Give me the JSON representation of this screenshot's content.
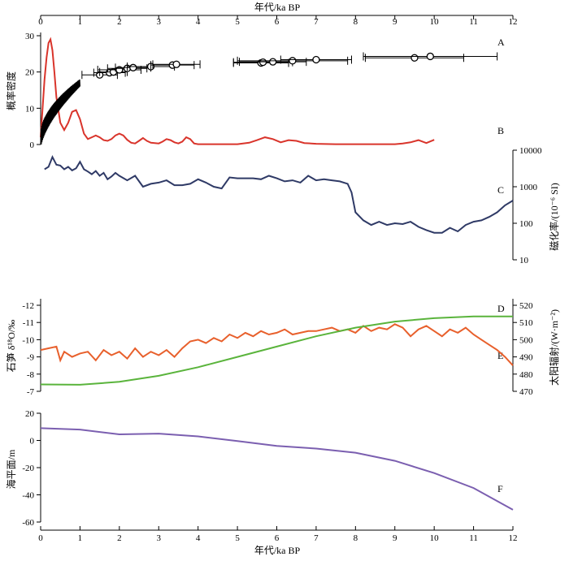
{
  "chart_data": {
    "type": "line",
    "x_axis": {
      "label_top": "年代/ka BP",
      "label_bottom": "年代/ka BP",
      "range": [
        0,
        12
      ],
      "ticks": [
        "0",
        "1",
        "2",
        "3",
        "4",
        "5",
        "6",
        "7",
        "8",
        "9",
        "10",
        "11",
        "12"
      ]
    },
    "panels": [
      {
        "id": "AB",
        "ylabel": "概率密度",
        "ylim": [
          0,
          30
        ],
        "yticks": [
          "0",
          "10",
          "20",
          "30"
        ],
        "series": [
          {
            "id": "A",
            "label": "A",
            "color": "#000000",
            "kind": "ages_with_errors",
            "points": [
              {
                "x": 1.5,
                "y": 19.2,
                "xerr": 0.45
              },
              {
                "x": 1.75,
                "y": 19.8,
                "xerr": 0.4
              },
              {
                "x": 1.85,
                "y": 20.0,
                "xerr": 0.35
              },
              {
                "x": 2.0,
                "y": 20.6,
                "xerr": 0.55
              },
              {
                "x": 2.2,
                "y": 21.0,
                "xerr": 0.5
              },
              {
                "x": 2.35,
                "y": 21.2,
                "xerr": 0.45
              },
              {
                "x": 2.8,
                "y": 21.5,
                "xerr": 0.6
              },
              {
                "x": 3.35,
                "y": 21.9,
                "xerr": 0.55
              },
              {
                "x": 3.45,
                "y": 22.1,
                "xerr": 0.6
              },
              {
                "x": 5.6,
                "y": 22.5,
                "xerr": 0.7
              },
              {
                "x": 5.65,
                "y": 22.7,
                "xerr": 0.75
              },
              {
                "x": 5.9,
                "y": 22.8,
                "xerr": 0.85
              },
              {
                "x": 6.4,
                "y": 23.1,
                "xerr": 1.4
              },
              {
                "x": 7.0,
                "y": 23.4,
                "xerr": 0.9
              },
              {
                "x": 9.5,
                "y": 23.9,
                "xerr": 1.25
              },
              {
                "x": 9.9,
                "y": 24.3,
                "xerr": 1.7
              }
            ]
          },
          {
            "id": "B",
            "label": "B",
            "color": "#d9342b",
            "kind": "probability_density",
            "x": [
              0,
              0.05,
              0.1,
              0.15,
              0.2,
              0.25,
              0.3,
              0.35,
              0.4,
              0.5,
              0.6,
              0.7,
              0.8,
              0.9,
              1.0,
              1.1,
              1.2,
              1.3,
              1.4,
              1.5,
              1.6,
              1.7,
              1.8,
              1.9,
              2.0,
              2.1,
              2.2,
              2.3,
              2.4,
              2.5,
              2.6,
              2.7,
              2.8,
              2.9,
              3.0,
              3.1,
              3.2,
              3.3,
              3.4,
              3.5,
              3.6,
              3.7,
              3.8,
              3.9,
              4.0,
              4.5,
              5.0,
              5.3,
              5.5,
              5.7,
              5.9,
              6.1,
              6.3,
              6.5,
              6.7,
              7.0,
              7.5,
              8.0,
              8.5,
              9.0,
              9.2,
              9.4,
              9.6,
              9.8,
              10.0
            ],
            "y": [
              2,
              10,
              18,
              24,
              28,
              29,
              26,
              20,
              13,
              6,
              4,
              6,
              9,
              9.5,
              7,
              3,
              1.5,
              2,
              2.5,
              2,
              1.2,
              1,
              1.5,
              2.5,
              3,
              2.5,
              1.3,
              0.5,
              0.3,
              1,
              1.8,
              1,
              0.5,
              0.4,
              0.3,
              0.8,
              1.5,
              1.2,
              0.6,
              0.3,
              0.8,
              2,
              1.5,
              0.3,
              0.1,
              0.1,
              0.1,
              0.5,
              1.2,
              2,
              1.5,
              0.6,
              1.2,
              1,
              0.4,
              0.2,
              0.1,
              0.1,
              0.1,
              0.1,
              0.3,
              0.6,
              1.2,
              0.4,
              1.3
            ]
          }
        ]
      },
      {
        "id": "C",
        "series_label": "C",
        "ylabel": "磁化率/(10⁻⁶ SI)",
        "yscale": "log",
        "ylim": [
          10,
          10000
        ],
        "yticks": [
          "10",
          "100",
          "1000",
          "10000"
        ],
        "color": "#2f3a66",
        "x": [
          0.1,
          0.2,
          0.3,
          0.4,
          0.5,
          0.6,
          0.7,
          0.8,
          0.9,
          1.0,
          1.1,
          1.2,
          1.3,
          1.4,
          1.5,
          1.6,
          1.7,
          1.8,
          1.9,
          2.0,
          2.2,
          2.4,
          2.6,
          2.8,
          3.0,
          3.2,
          3.4,
          3.6,
          3.8,
          4.0,
          4.2,
          4.4,
          4.6,
          4.8,
          5.0,
          5.2,
          5.4,
          5.6,
          5.8,
          6.0,
          6.2,
          6.4,
          6.6,
          6.8,
          7.0,
          7.2,
          7.4,
          7.6,
          7.8,
          7.9,
          8.0,
          8.2,
          8.4,
          8.6,
          8.8,
          9.0,
          9.2,
          9.4,
          9.6,
          9.8,
          10.0,
          10.2,
          10.4,
          10.6,
          10.8,
          11.0,
          11.2,
          11.4,
          11.6,
          11.8,
          12.0
        ],
        "y": [
          3000,
          3500,
          6500,
          4000,
          3800,
          3000,
          3500,
          2800,
          3200,
          4800,
          3000,
          2600,
          2200,
          2700,
          2000,
          2400,
          1600,
          1900,
          2400,
          2000,
          1500,
          2000,
          1000,
          1200,
          1300,
          1500,
          1100,
          1100,
          1200,
          1600,
          1300,
          1000,
          900,
          1800,
          1700,
          1700,
          1700,
          1600,
          2000,
          1700,
          1400,
          1500,
          1300,
          2000,
          1500,
          1600,
          1500,
          1400,
          1200,
          700,
          200,
          120,
          90,
          110,
          90,
          100,
          95,
          110,
          80,
          65,
          55,
          55,
          75,
          60,
          90,
          110,
          120,
          150,
          200,
          310,
          420
        ]
      },
      {
        "id": "DE",
        "left": {
          "id": "E",
          "label": "E",
          "ylabel": "石笋 δ¹⁸O/‰",
          "ylim": [
            -7,
            -12
          ],
          "yticks": [
            "-7",
            "-8",
            "-9",
            "-10",
            "-11",
            "-12"
          ],
          "color": "#e8602c",
          "x": [
            0,
            0.2,
            0.4,
            0.5,
            0.6,
            0.8,
            1.0,
            1.2,
            1.4,
            1.6,
            1.8,
            2.0,
            2.2,
            2.4,
            2.6,
            2.8,
            3.0,
            3.2,
            3.4,
            3.6,
            3.8,
            4.0,
            4.2,
            4.4,
            4.6,
            4.8,
            5.0,
            5.2,
            5.4,
            5.6,
            5.8,
            6.0,
            6.2,
            6.4,
            6.6,
            6.8,
            7.0,
            7.2,
            7.4,
            7.6,
            7.8,
            8.0,
            8.2,
            8.4,
            8.6,
            8.8,
            9.0,
            9.2,
            9.4,
            9.6,
            9.8,
            10.0,
            10.2,
            10.4,
            10.6,
            10.8,
            11.0,
            11.2,
            11.4,
            11.6,
            11.8,
            12.0
          ],
          "y": [
            -9.4,
            -9.5,
            -9.6,
            -8.8,
            -9.3,
            -9.0,
            -9.2,
            -9.3,
            -8.8,
            -9.4,
            -9.1,
            -9.3,
            -8.9,
            -9.5,
            -9.0,
            -9.3,
            -9.1,
            -9.4,
            -9.0,
            -9.5,
            -9.9,
            -10.0,
            -9.8,
            -10.1,
            -9.9,
            -10.3,
            -10.1,
            -10.4,
            -10.2,
            -10.5,
            -10.3,
            -10.4,
            -10.6,
            -10.3,
            -10.4,
            -10.5,
            -10.5,
            -10.6,
            -10.7,
            -10.5,
            -10.6,
            -10.4,
            -10.8,
            -10.5,
            -10.7,
            -10.6,
            -10.9,
            -10.7,
            -10.2,
            -10.6,
            -10.8,
            -10.5,
            -10.2,
            -10.6,
            -10.4,
            -10.7,
            -10.3,
            -10.0,
            -9.7,
            -9.4,
            -9.0,
            -8.5
          ]
        },
        "right": {
          "id": "D",
          "label": "D",
          "ylabel": "太阳辐射/(W·m⁻²)",
          "ylim": [
            470,
            520
          ],
          "yticks": [
            "470",
            "480",
            "490",
            "500",
            "510",
            "520"
          ],
          "color": "#5ab43c",
          "x": [
            0,
            1,
            2,
            3,
            4,
            5,
            6,
            7,
            8,
            9,
            10,
            11,
            12
          ],
          "y": [
            474,
            473.8,
            475.5,
            479,
            484,
            490,
            496,
            502,
            507,
            510.5,
            512.5,
            513.5,
            513.5
          ]
        }
      },
      {
        "id": "F",
        "series_label": "F",
        "ylabel": "海平面/m",
        "ylim": [
          -60,
          20
        ],
        "yticks": [
          "-60",
          "-40",
          "-20",
          "0",
          "20"
        ],
        "color": "#7b5fb0",
        "x": [
          0,
          1,
          2,
          3,
          4,
          5,
          6,
          7,
          8,
          9,
          10,
          11,
          12
        ],
        "y": [
          9,
          8,
          4.5,
          5,
          3,
          -0.5,
          -4,
          -6,
          -9,
          -15,
          -24,
          -35,
          -51
        ]
      }
    ]
  }
}
